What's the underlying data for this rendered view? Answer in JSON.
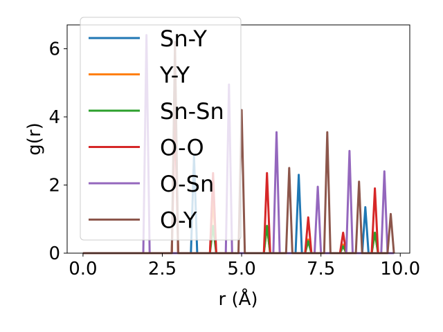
{
  "chart_data": {
    "type": "line",
    "title": "",
    "xlabel": "r (Å)",
    "ylabel": "g(r)",
    "xlim": [
      -0.5,
      10.3
    ],
    "ylim": [
      0,
      6.7
    ],
    "xticks": [
      0.0,
      2.5,
      5.0,
      7.5,
      10.0
    ],
    "xtick_labels": [
      "0.0",
      "2.5",
      "5.0",
      "7.5",
      "10.0"
    ],
    "yticks": [
      0,
      2,
      4,
      6
    ],
    "ytick_labels": [
      "0",
      "2",
      "4",
      "6"
    ],
    "peak_half_width": 0.1,
    "x_range": [
      0.0,
      9.8
    ],
    "legend_position": "upper-left",
    "series": [
      {
        "name": "Sn-Y",
        "color": "#1f77b4",
        "peaks": [
          [
            3.5,
            2.85
          ],
          [
            6.8,
            2.3
          ],
          [
            8.9,
            1.35
          ]
        ]
      },
      {
        "name": "Y-Y",
        "color": "#ff7f0e",
        "peaks": [
          [
            2.9,
            5.5
          ],
          [
            4.1,
            1.6
          ],
          [
            5.8,
            0.8
          ],
          [
            7.1,
            0.4
          ],
          [
            8.2,
            0.25
          ],
          [
            9.2,
            0.6
          ]
        ]
      },
      {
        "name": "Sn-Sn",
        "color": "#2ca02c",
        "peaks": [
          [
            4.1,
            0.8
          ],
          [
            5.8,
            0.8
          ],
          [
            7.1,
            0.35
          ],
          [
            8.2,
            0.2
          ],
          [
            9.2,
            0.6
          ]
        ]
      },
      {
        "name": "O-O",
        "color": "#d62728",
        "peaks": [
          [
            2.9,
            4.2
          ],
          [
            4.1,
            2.35
          ],
          [
            5.8,
            2.35
          ],
          [
            7.1,
            1.05
          ],
          [
            8.2,
            0.6
          ],
          [
            9.2,
            1.9
          ]
        ]
      },
      {
        "name": "O-Sn",
        "color": "#9467bd",
        "peaks": [
          [
            2.0,
            6.4
          ],
          [
            4.6,
            4.95
          ],
          [
            6.1,
            3.55
          ],
          [
            7.4,
            1.95
          ],
          [
            8.4,
            3.0
          ],
          [
            9.5,
            2.4
          ]
        ]
      },
      {
        "name": "O-Y",
        "color": "#8c564b",
        "peaks": [
          [
            2.9,
            6.2
          ],
          [
            5.0,
            4.2
          ],
          [
            6.5,
            2.5
          ],
          [
            7.7,
            3.55
          ],
          [
            8.7,
            2.1
          ],
          [
            9.7,
            1.15
          ]
        ]
      }
    ]
  }
}
